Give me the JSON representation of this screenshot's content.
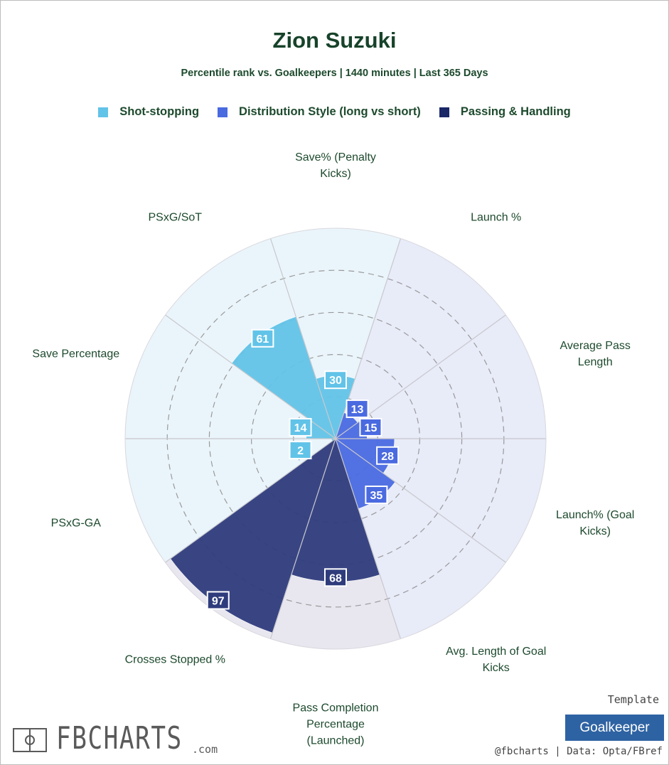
{
  "chart_data": {
    "type": "polar-bar",
    "title": "Zion Suzuki",
    "subtitle": "Percentile rank vs. Goalkeepers | 1440 minutes | Last 365 Days",
    "categories": [
      "Save% (Penalty Kicks)",
      "Launch %",
      "Average Pass Length",
      "Launch% (Goal Kicks)",
      "Avg. Length of Goal Kicks",
      "Pass Completion Percentage (Launched)",
      "Crosses Stopped %",
      "PSxG-GA",
      "Save Percentage",
      "PSxG/SoT"
    ],
    "series": [
      {
        "name": "Shot-stopping",
        "color": "#62c3e8",
        "background": "#eaf5fb",
        "values": [
          30,
          null,
          null,
          null,
          null,
          null,
          null,
          2,
          14,
          61
        ]
      },
      {
        "name": "Distribution Style (long vs short)",
        "color": "#4a6ae0",
        "background": "#e8ebf8",
        "values": [
          null,
          13,
          15,
          28,
          35,
          null,
          null,
          null,
          null,
          null
        ]
      },
      {
        "name": "Passing & Handling",
        "color": "#2f3c7c",
        "background": "#e8e6ef",
        "values": [
          null,
          null,
          null,
          null,
          null,
          68,
          97,
          null,
          null,
          null
        ]
      }
    ],
    "rlim": [
      0,
      100
    ],
    "rticks": [
      20,
      40,
      60,
      80
    ]
  },
  "footer": {
    "logo": "FBCHARTS",
    "logo_suffix": ".com",
    "template_label": "Template",
    "template": "Goalkeeper",
    "credit": "@fbcharts | Data: Opta/FBref"
  }
}
